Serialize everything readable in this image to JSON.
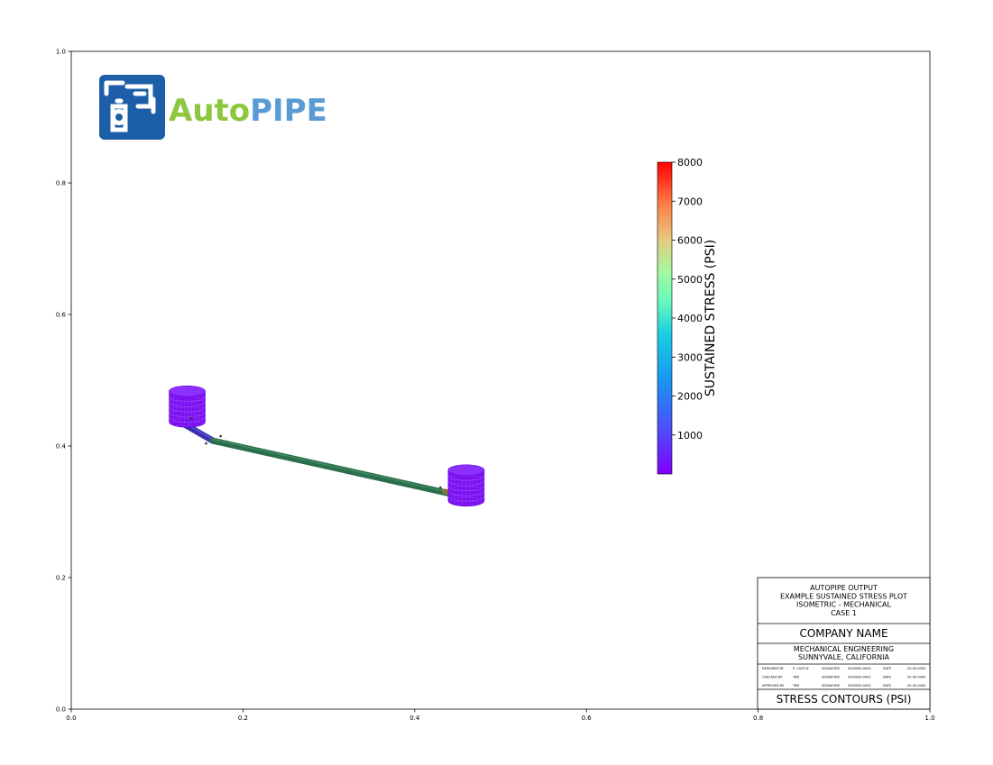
{
  "chart_data": {
    "type": "scatter",
    "xlim": [
      0.0,
      1.0
    ],
    "ylim": [
      0.0,
      1.0
    ],
    "x_ticks": [
      "0.0",
      "0.2",
      "0.4",
      "0.6",
      "0.8",
      "1.0"
    ],
    "y_ticks": [
      "0.0",
      "0.2",
      "0.4",
      "0.6",
      "0.8",
      "1.0"
    ],
    "grid": false,
    "colorbar": {
      "label": "SUSTAINED STRESS (PSI)",
      "range": [
        0,
        8000
      ],
      "ticks": [
        "1000",
        "2000",
        "3000",
        "4000",
        "5000",
        "6000",
        "7000",
        "8000"
      ],
      "colormap": "rainbow"
    },
    "pipe": {
      "segments": [
        {
          "from": [
            0.133,
            0.432
          ],
          "to": [
            0.165,
            0.408
          ],
          "stress": 800
        },
        {
          "from": [
            0.165,
            0.408
          ],
          "to": [
            0.44,
            0.328
          ],
          "stress": 4200
        }
      ],
      "tanks": [
        {
          "center": [
            0.135,
            0.46
          ],
          "stress": 100
        },
        {
          "center": [
            0.46,
            0.34
          ],
          "stress": 100
        }
      ],
      "points": [
        [
          0.14,
          0.442
        ],
        [
          0.157,
          0.404
        ],
        [
          0.174,
          0.415
        ],
        [
          0.43,
          0.337
        ]
      ]
    }
  },
  "logo": {
    "part1": "Auto",
    "part2": "PIPE",
    "color1": "#8dc63f",
    "color2": "#5b9bd5"
  },
  "title_block": {
    "header_lines": [
      "AUTOPIPE OUTPUT",
      "EXAMPLE SUSTAINED STRESS PLOT",
      "ISOMETRIC - MECHANICAL",
      "CASE 1"
    ],
    "company": "COMPANY NAME",
    "dept_lines": [
      "MECHANICAL ENGINEERING",
      "SUNNYVALE, CALIFORNIA"
    ],
    "rows": [
      [
        "DESIGNED BY",
        "E. CASTLE",
        "SIGNATURE",
        "0000000-0000",
        "DATE",
        "00-00-0000"
      ],
      [
        "CHECKED BY",
        "TBD",
        "SIGNATURE",
        "0000000-0001",
        "DATE",
        "00-00-0000"
      ],
      [
        "APPROVED BY",
        "TBD",
        "SIGNATURE",
        "0000000-0002",
        "DATE",
        "00-00-0000"
      ]
    ],
    "footer": "STRESS CONTOURS (PSI)"
  }
}
